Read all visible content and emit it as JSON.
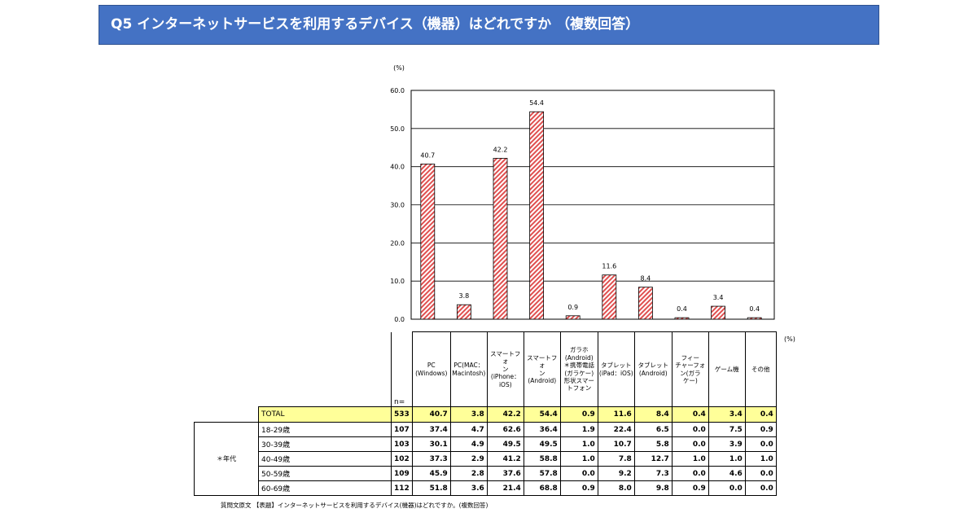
{
  "header": {
    "title": "Q5  インターネットサービスを利用するデバイス（機器）はどれですか  （複数回答）"
  },
  "chart_data": {
    "type": "bar",
    "ylabel": "(%)",
    "ylim": [
      0,
      60
    ],
    "yticks": [
      "0.0",
      "10.0",
      "20.0",
      "30.0",
      "40.0",
      "50.0",
      "60.0"
    ],
    "grid": true,
    "bar_fill": "#e05050",
    "categories": [
      "PC（Windows）",
      "PC（MAC：Macintosh）",
      "スマートフォン（iPhone：iOS）",
      "スマートフォン（Android）",
      "ガラホ（Android）＊携帯電話（ガラケー）形状スマートフォン",
      "タブレット（iPad：iOS）",
      "タブレット（Android）",
      "フィーチャーフォン（ガラケー）",
      "ゲーム機",
      "その他"
    ],
    "values": [
      40.7,
      3.8,
      42.2,
      54.4,
      0.9,
      11.6,
      8.4,
      0.4,
      3.4,
      0.4
    ],
    "value_labels": [
      "40.7",
      "3.8",
      "42.2",
      "54.4",
      "0.9",
      "11.6",
      "8.4",
      "0.4",
      "3.4",
      "0.4"
    ]
  },
  "table": {
    "pct_unit": "(%)",
    "n_header": "n=",
    "group_label": "＊年代",
    "columns": [
      [
        "PC",
        "(Windows)"
      ],
      [
        "PC(MAC：",
        "Macintosh)"
      ],
      [
        "スマートフォ",
        "ン(iPhone：",
        "iOS)"
      ],
      [
        "スマートフォ",
        "ン(Android)"
      ],
      [
        "ガラホ",
        "(Android)",
        "＊携帯電話",
        "(ガラケー)",
        "形状スマー",
        "トフォン"
      ],
      [
        "タブレット",
        "(iPad：iOS)"
      ],
      [
        "タブレット",
        "(Android)"
      ],
      [
        "フィー",
        "チャーフォ",
        "ン(ガラ",
        "ケー)"
      ],
      [
        "ゲーム機"
      ],
      [
        "その他"
      ]
    ],
    "total": {
      "label": "TOTAL",
      "n": "533",
      "values": [
        "40.7",
        "3.8",
        "42.2",
        "54.4",
        "0.9",
        "11.6",
        "8.4",
        "0.4",
        "3.4",
        "0.4"
      ]
    },
    "rows": [
      {
        "label": "18-29歳",
        "n": "107",
        "values": [
          "37.4",
          "4.7",
          "62.6",
          "36.4",
          "1.9",
          "22.4",
          "6.5",
          "0.0",
          "7.5",
          "0.9"
        ]
      },
      {
        "label": "30-39歳",
        "n": "103",
        "values": [
          "30.1",
          "4.9",
          "49.5",
          "49.5",
          "1.0",
          "10.7",
          "5.8",
          "0.0",
          "3.9",
          "0.0"
        ]
      },
      {
        "label": "40-49歳",
        "n": "102",
        "values": [
          "37.3",
          "2.9",
          "41.2",
          "58.8",
          "1.0",
          "7.8",
          "12.7",
          "1.0",
          "1.0",
          "1.0"
        ]
      },
      {
        "label": "50-59歳",
        "n": "109",
        "values": [
          "45.9",
          "2.8",
          "37.6",
          "57.8",
          "0.0",
          "9.2",
          "7.3",
          "0.0",
          "4.6",
          "0.0"
        ]
      },
      {
        "label": "60-69歳",
        "n": "112",
        "values": [
          "51.8",
          "3.6",
          "21.4",
          "68.8",
          "0.9",
          "8.0",
          "9.8",
          "0.9",
          "0.0",
          "0.0"
        ]
      }
    ]
  },
  "footnote": "質問文原文 【表題】インターネットサービスを利用するデバイス(機器)はどれですか。(複数回答)"
}
